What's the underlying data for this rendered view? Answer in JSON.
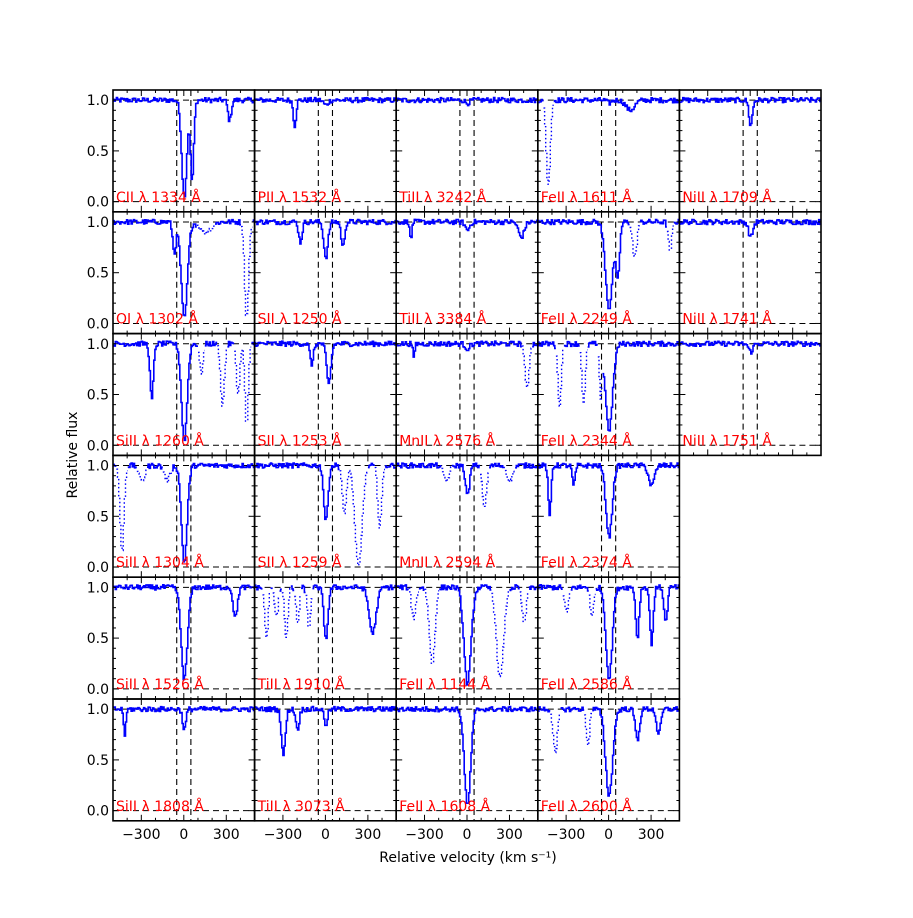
{
  "chart_data": {
    "type": "line",
    "xlabel": "Relative velocity (km s⁻¹)",
    "ylabel": "Relative flux",
    "xlim": [
      -500,
      500
    ],
    "ylim": [
      -0.1,
      1.1
    ],
    "x_ticks": [
      "−300",
      "0",
      "300"
    ],
    "y_ticks": [
      "0.0",
      "0.5",
      "1.0"
    ],
    "velocity_markers": [
      -50,
      50
    ],
    "grid": false,
    "colors": {
      "spectrum": "#0000ff",
      "label": "#ff0000",
      "reference": "#000000"
    },
    "panels": [
      {
        "label": "CII λ 1334 Å",
        "col": 0,
        "row": 0,
        "lines": [
          {
            "v": 0,
            "depth": 0.95,
            "w": 18
          },
          {
            "v": 55,
            "depth": 0.8,
            "w": 12
          },
          {
            "v": 320,
            "depth": 0.2,
            "w": 12
          }
        ]
      },
      {
        "label": "PII λ 1532 Å",
        "col": 1,
        "row": 0,
        "lines": [
          {
            "v": -220,
            "depth": 0.25,
            "w": 10
          },
          {
            "v": 0,
            "depth": 0.05,
            "w": 15
          }
        ]
      },
      {
        "label": "TiII λ 3242 Å",
        "col": 2,
        "row": 0,
        "lines": [
          {
            "v": 0,
            "depth": 0.03,
            "w": 15
          }
        ]
      },
      {
        "label": "FeII λ 1611 Å",
        "col": 3,
        "row": 0,
        "lines": [
          {
            "v": 150,
            "depth": 0.1,
            "w": 30
          },
          {
            "v": 0,
            "depth": 0.03,
            "w": 15
          }
        ],
        "dotted": [
          {
            "v": -430,
            "depth": 0.85,
            "w": 14
          }
        ]
      },
      {
        "label": "NiII λ 1709 Å",
        "col": 4,
        "row": 0,
        "lines": [
          {
            "v": 0,
            "depth": 0.25,
            "w": 12
          }
        ]
      },
      {
        "label": "OI λ 1302 Å",
        "col": 0,
        "row": 1,
        "lines": [
          {
            "v": -70,
            "depth": 0.3,
            "w": 12
          },
          {
            "v": 0,
            "depth": 0.95,
            "w": 22
          }
        ],
        "dotted": [
          {
            "v": 150,
            "depth": 0.1,
            "w": 40
          },
          {
            "v": 440,
            "depth": 0.95,
            "w": 14
          }
        ]
      },
      {
        "label": "SII λ 1250 Å",
        "col": 1,
        "row": 1,
        "lines": [
          {
            "v": -180,
            "depth": 0.2,
            "w": 12
          },
          {
            "v": 0,
            "depth": 0.35,
            "w": 15
          },
          {
            "v": 120,
            "depth": 0.25,
            "w": 12
          }
        ]
      },
      {
        "label": "TiII λ 3384 Å",
        "col": 2,
        "row": 1,
        "lines": [
          {
            "v": -400,
            "depth": 0.2,
            "w": 6
          },
          {
            "v": 0,
            "depth": 0.08,
            "w": 15
          },
          {
            "v": 380,
            "depth": 0.15,
            "w": 20
          }
        ]
      },
      {
        "label": "FeII λ 2249 Å",
        "col": 3,
        "row": 1,
        "lines": [
          {
            "v": 0,
            "depth": 0.85,
            "w": 25
          },
          {
            "v": 60,
            "depth": 0.55,
            "w": 14
          }
        ],
        "dotted": [
          {
            "v": 180,
            "depth": 0.35,
            "w": 15
          },
          {
            "v": 430,
            "depth": 0.3,
            "w": 12
          }
        ]
      },
      {
        "label": "NiII λ 1741 Å",
        "col": 4,
        "row": 1,
        "lines": [
          {
            "v": 0,
            "depth": 0.15,
            "w": 15
          }
        ]
      },
      {
        "label": "SiII λ 1260 Å",
        "col": 0,
        "row": 2,
        "lines": [
          {
            "v": -230,
            "depth": 0.55,
            "w": 12
          },
          {
            "v": 0,
            "depth": 0.95,
            "w": 20
          }
        ],
        "dotted": [
          {
            "v": 120,
            "depth": 0.3,
            "w": 12
          },
          {
            "v": 270,
            "depth": 0.6,
            "w": 14
          },
          {
            "v": 380,
            "depth": 0.5,
            "w": 12
          },
          {
            "v": 440,
            "depth": 0.8,
            "w": 12
          }
        ]
      },
      {
        "label": "SII λ 1253 Å",
        "col": 1,
        "row": 2,
        "lines": [
          {
            "v": -100,
            "depth": 0.2,
            "w": 12
          },
          {
            "v": 20,
            "depth": 0.4,
            "w": 15
          }
        ]
      },
      {
        "label": "MnII λ 2576 Å",
        "col": 2,
        "row": 2,
        "lines": [
          {
            "v": -380,
            "depth": 0.15,
            "w": 6
          },
          {
            "v": 0,
            "depth": 0.05,
            "w": 15
          }
        ],
        "dotted": [
          {
            "v": 420,
            "depth": 0.45,
            "w": 14
          }
        ]
      },
      {
        "label": "FeII λ 2344 Å",
        "col": 3,
        "row": 2,
        "lines": [
          {
            "v": 0,
            "depth": 0.85,
            "w": 25
          }
        ],
        "dotted": [
          {
            "v": -350,
            "depth": 0.6,
            "w": 12
          },
          {
            "v": -180,
            "depth": 0.6,
            "w": 12
          },
          {
            "v": -60,
            "depth": 0.5,
            "w": 10
          }
        ]
      },
      {
        "label": "NiII λ 1751 Å",
        "col": 4,
        "row": 2,
        "lines": [
          {
            "v": 0,
            "depth": 0.08,
            "w": 15
          }
        ]
      },
      {
        "label": "SiII λ 1304 Å",
        "col": 0,
        "row": 3,
        "lines": [
          {
            "v": 0,
            "depth": 0.95,
            "w": 20
          }
        ],
        "dotted": [
          {
            "v": -440,
            "depth": 0.85,
            "w": 14
          },
          {
            "v": -300,
            "depth": 0.15,
            "w": 20
          },
          {
            "v": -120,
            "depth": 0.15,
            "w": 20
          }
        ]
      },
      {
        "label": "SII λ 1259 Å",
        "col": 1,
        "row": 3,
        "lines": [
          {
            "v": 0,
            "depth": 0.55,
            "w": 15
          }
        ],
        "dotted": [
          {
            "v": 130,
            "depth": 0.5,
            "w": 14
          },
          {
            "v": 230,
            "depth": 1.0,
            "w": 25
          },
          {
            "v": 380,
            "depth": 0.6,
            "w": 14
          }
        ]
      },
      {
        "label": "MnII λ 2594 Å",
        "col": 2,
        "row": 3,
        "lines": [
          {
            "v": 0,
            "depth": 0.3,
            "w": 14
          }
        ],
        "dotted": [
          {
            "v": 120,
            "depth": 0.4,
            "w": 15
          },
          {
            "v": -150,
            "depth": 0.15,
            "w": 20
          },
          {
            "v": 300,
            "depth": 0.15,
            "w": 20
          }
        ]
      },
      {
        "label": "FeII λ 2374 Å",
        "col": 3,
        "row": 3,
        "lines": [
          {
            "v": -420,
            "depth": 0.5,
            "w": 10
          },
          {
            "v": -250,
            "depth": 0.2,
            "w": 10
          },
          {
            "v": 0,
            "depth": 0.7,
            "w": 22
          },
          {
            "v": 300,
            "depth": 0.2,
            "w": 20
          }
        ]
      },
      {
        "label": "SiII λ 1526 Å",
        "col": 0,
        "row": 4,
        "lines": [
          {
            "v": 0,
            "depth": 0.9,
            "w": 22
          },
          {
            "v": 360,
            "depth": 0.3,
            "w": 15
          }
        ]
      },
      {
        "label": "TiII λ 1910 Å",
        "col": 1,
        "row": 4,
        "lines": [
          {
            "v": 0,
            "depth": 0.5,
            "w": 15
          },
          {
            "v": 330,
            "depth": 0.45,
            "w": 25
          }
        ],
        "dotted": [
          {
            "v": -420,
            "depth": 0.5,
            "w": 12
          },
          {
            "v": -350,
            "depth": 0.3,
            "w": 12
          },
          {
            "v": -280,
            "depth": 0.5,
            "w": 12
          },
          {
            "v": -200,
            "depth": 0.35,
            "w": 12
          },
          {
            "v": -120,
            "depth": 0.4,
            "w": 12
          }
        ]
      },
      {
        "label": "FeII λ 1144 Å",
        "col": 2,
        "row": 4,
        "lines": [
          {
            "v": 0,
            "depth": 0.95,
            "w": 25
          }
        ],
        "dotted": [
          {
            "v": -380,
            "depth": 0.3,
            "w": 15
          },
          {
            "v": -250,
            "depth": 0.75,
            "w": 20
          },
          {
            "v": 230,
            "depth": 0.9,
            "w": 25
          },
          {
            "v": 400,
            "depth": 0.35,
            "w": 15
          }
        ]
      },
      {
        "label": "FeII λ 2586 Å",
        "col": 3,
        "row": 4,
        "lines": [
          {
            "v": 0,
            "depth": 0.9,
            "w": 22
          },
          {
            "v": 200,
            "depth": 0.5,
            "w": 12
          },
          {
            "v": 300,
            "depth": 0.55,
            "w": 12
          },
          {
            "v": 400,
            "depth": 0.35,
            "w": 12
          }
        ],
        "dotted": [
          {
            "v": -300,
            "depth": 0.25,
            "w": 15
          },
          {
            "v": -120,
            "depth": 0.3,
            "w": 12
          }
        ]
      },
      {
        "label": "SiII λ 1808 Å",
        "col": 0,
        "row": 5,
        "lines": [
          {
            "v": -420,
            "depth": 0.25,
            "w": 8
          },
          {
            "v": 0,
            "depth": 0.2,
            "w": 12
          }
        ]
      },
      {
        "label": "TiII λ 3073 Å",
        "col": 1,
        "row": 5,
        "lines": [
          {
            "v": -300,
            "depth": 0.45,
            "w": 14
          },
          {
            "v": -200,
            "depth": 0.2,
            "w": 12
          },
          {
            "v": 0,
            "depth": 0.15,
            "w": 12
          }
        ]
      },
      {
        "label": "FeII λ 1608 Å",
        "col": 2,
        "row": 5,
        "lines": [
          {
            "v": 0,
            "depth": 0.95,
            "w": 22
          }
        ]
      },
      {
        "label": "FeII λ 2600 Å",
        "col": 3,
        "row": 5,
        "lines": [
          {
            "v": 0,
            "depth": 0.85,
            "w": 25
          },
          {
            "v": 200,
            "depth": 0.3,
            "w": 15
          },
          {
            "v": 350,
            "depth": 0.25,
            "w": 15
          }
        ],
        "dotted": [
          {
            "v": -380,
            "depth": 0.45,
            "w": 15
          },
          {
            "v": -150,
            "depth": 0.35,
            "w": 12
          }
        ]
      }
    ]
  }
}
